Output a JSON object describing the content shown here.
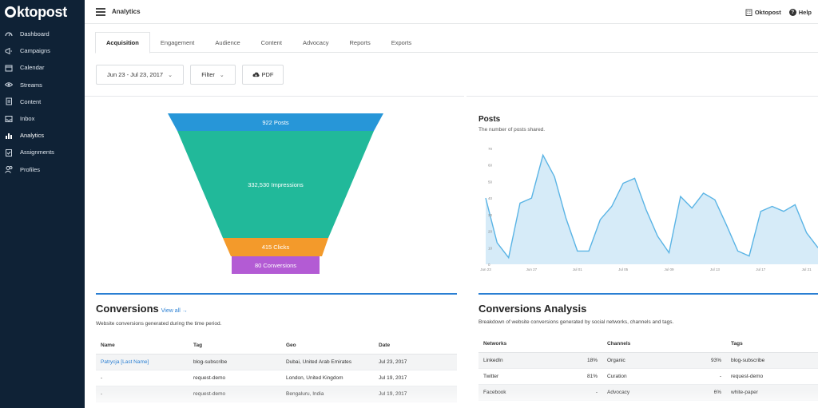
{
  "brand": {
    "name": "ktopost",
    "accent": "#2a7fd3",
    "sidebar_bg": "#0f2236"
  },
  "sidebar": {
    "items": [
      {
        "label": "Dashboard",
        "icon": "dashboard-icon"
      },
      {
        "label": "Campaigns",
        "icon": "megaphone-icon"
      },
      {
        "label": "Calendar",
        "icon": "calendar-icon"
      },
      {
        "label": "Streams",
        "icon": "eye-icon"
      },
      {
        "label": "Content",
        "icon": "document-icon"
      },
      {
        "label": "Inbox",
        "icon": "inbox-icon"
      },
      {
        "label": "Analytics",
        "icon": "bar-chart-icon"
      },
      {
        "label": "Assignments",
        "icon": "clipboard-icon"
      },
      {
        "label": "Profiles",
        "icon": "users-icon"
      }
    ]
  },
  "header": {
    "title": "Analytics",
    "account": "Oktopost",
    "help": "Help"
  },
  "tabs": [
    {
      "label": "Acquisition",
      "active": true
    },
    {
      "label": "Engagement"
    },
    {
      "label": "Audience"
    },
    {
      "label": "Content"
    },
    {
      "label": "Advocacy"
    },
    {
      "label": "Reports"
    },
    {
      "label": "Exports"
    }
  ],
  "filters": {
    "date_range": "Jun 23 - Jul 23, 2017",
    "filter": "Filter",
    "pdf": "PDF"
  },
  "funnel": {
    "stages": [
      {
        "label": "922 Posts",
        "color": "#2796d8"
      },
      {
        "label": "332,530 Impressions",
        "color": "#21b99a"
      },
      {
        "label": "415 Clicks",
        "color": "#f39a2b"
      },
      {
        "label": "80 Conversions",
        "color": "#b35bd4"
      }
    ]
  },
  "posts": {
    "title": "Posts",
    "subtitle": "The number of posts shared."
  },
  "chart_data": {
    "type": "area",
    "title": "Posts",
    "ylim": [
      0,
      70
    ],
    "yticks": [
      0,
      10,
      20,
      30,
      40,
      50,
      60,
      70
    ],
    "xticks": [
      "Jun 23",
      "Jun 27",
      "Jul 01",
      "Jul 05",
      "Jul 09",
      "Jul 13",
      "Jul 17",
      "Jul 21"
    ],
    "values": [
      40,
      13,
      4,
      37,
      40,
      66,
      53,
      28,
      8,
      8,
      27,
      35,
      49,
      52,
      33,
      17,
      7,
      41,
      34,
      43,
      39,
      24,
      8,
      5,
      32,
      35,
      32,
      36,
      19,
      10
    ],
    "color": "#5ab4e5",
    "fill": "#d6ebf8",
    "grid": false
  },
  "conversions": {
    "title": "Conversions",
    "view_all": "View all →",
    "subtitle": "Website conversions generated during the time period.",
    "headers": [
      "Name",
      "Tag",
      "Geo",
      "Date"
    ],
    "rows": [
      [
        "Patrycja [Last Name]",
        "blog-subscribe",
        "Dubai, United Arab Emirates",
        "Jul 23, 2017"
      ],
      [
        "-",
        "request-demo",
        "London, United Kingdom",
        "Jul 19, 2017"
      ],
      [
        "-",
        "request-demo",
        "Bengaluru, India",
        "Jul 19, 2017"
      ]
    ]
  },
  "analysis": {
    "title": "Conversions Analysis",
    "subtitle": "Breakdown of website conversions generated by social networks, channels and tags.",
    "headers": [
      "Networks",
      "Channels",
      "Tags"
    ],
    "rows": [
      [
        "LinkedIn",
        "18%",
        "Organic",
        "93%",
        "blog-subscribe"
      ],
      [
        "Twitter",
        "81%",
        "Curation",
        "-",
        "request-demo"
      ],
      [
        "Facebook",
        "-",
        "Advocacy",
        "6%",
        "white-paper"
      ]
    ]
  }
}
